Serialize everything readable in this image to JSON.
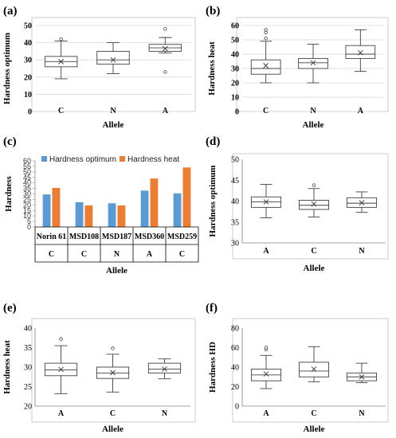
{
  "panels": {
    "a": {
      "label": "(a)"
    },
    "b": {
      "label": "(b)"
    },
    "c": {
      "label": "(c)"
    },
    "d": {
      "label": "(d)"
    },
    "e": {
      "label": "(e)"
    },
    "f": {
      "label": "(f)"
    }
  },
  "chart_data": [
    {
      "id": "a",
      "type": "box",
      "title": "",
      "xlabel": "Allele",
      "ylabel": "Hardness optimum",
      "ylim": [
        0,
        50
      ],
      "yticks": [
        0,
        10,
        20,
        30,
        40,
        50
      ],
      "grid": true,
      "categories": [
        "C",
        "N",
        "A"
      ],
      "boxes": [
        {
          "min": 19,
          "q1": 26,
          "median": 29,
          "q3": 32,
          "max": 41,
          "mean": 29,
          "outliers": [
            42
          ]
        },
        {
          "min": 22,
          "q1": 27.5,
          "median": 30,
          "q3": 35,
          "max": 40,
          "mean": 30,
          "outliers": []
        },
        {
          "min": 34,
          "q1": 35,
          "median": 37,
          "q3": 39,
          "max": 43,
          "mean": 36.5,
          "outliers": [
            48,
            23
          ]
        }
      ]
    },
    {
      "id": "b",
      "type": "box",
      "title": "",
      "xlabel": "Allele",
      "ylabel": "Hardness heat",
      "ylim": [
        0,
        60
      ],
      "yticks": [
        0,
        10,
        20,
        30,
        40,
        50,
        60
      ],
      "grid": true,
      "categories": [
        "C",
        "N",
        "A"
      ],
      "boxes": [
        {
          "min": 20,
          "q1": 26,
          "median": 30,
          "q3": 36,
          "max": 49,
          "mean": 32,
          "outliers": [
            51,
            55,
            57
          ]
        },
        {
          "min": 20,
          "q1": 30,
          "median": 34,
          "q3": 37,
          "max": 47,
          "mean": 34,
          "outliers": []
        },
        {
          "min": 28,
          "q1": 37,
          "median": 40,
          "q3": 46,
          "max": 57,
          "mean": 41,
          "outliers": []
        }
      ]
    },
    {
      "id": "c",
      "type": "bar",
      "title": "",
      "xlabel": "Allele",
      "ylabel": "Hardness",
      "ylim": [
        0,
        60
      ],
      "yticks": [
        0,
        5,
        10,
        15,
        20,
        25,
        30,
        35,
        40,
        45,
        50,
        55,
        60
      ],
      "grid": false,
      "legend": "top",
      "categories": [
        "Norin 61",
        "MSD108",
        "MSD187",
        "MSD360",
        "MSD259"
      ],
      "alleles": [
        "C",
        "C",
        "N",
        "A",
        "C"
      ],
      "series": [
        {
          "name": "Hardness optimum",
          "color": "#5B9BD5",
          "values": [
            29.5,
            22.5,
            21.5,
            33,
            30.5
          ]
        },
        {
          "name": "Hardness heat",
          "color": "#ED7D31",
          "values": [
            35.5,
            19.5,
            19.5,
            44,
            54
          ]
        }
      ]
    },
    {
      "id": "d",
      "type": "box",
      "title": "",
      "xlabel": "Allele",
      "ylabel": "Hardness optimum",
      "ylim": [
        30,
        50
      ],
      "yticks": [
        30,
        35,
        40,
        45,
        50
      ],
      "grid": false,
      "categories": [
        "A",
        "C",
        "N"
      ],
      "boxes": [
        {
          "min": 36,
          "q1": 38.5,
          "median": 39.8,
          "q3": 41,
          "max": 44,
          "mean": 39.8,
          "outliers": []
        },
        {
          "min": 36.2,
          "q1": 38,
          "median": 39,
          "q3": 40.2,
          "max": 43,
          "mean": 39.3,
          "outliers": [
            43.8
          ]
        },
        {
          "min": 37.3,
          "q1": 38.5,
          "median": 39.5,
          "q3": 40.8,
          "max": 42.2,
          "mean": 39.6,
          "outliers": []
        }
      ]
    },
    {
      "id": "e",
      "type": "box",
      "title": "",
      "xlabel": "Allele",
      "ylabel": "Hardness heat",
      "ylim": [
        20,
        40
      ],
      "yticks": [
        20,
        25,
        30,
        35,
        40
      ],
      "grid": false,
      "categories": [
        "A",
        "C",
        "N"
      ],
      "boxes": [
        {
          "min": 23.2,
          "q1": 27.8,
          "median": 29.3,
          "q3": 31,
          "max": 35.5,
          "mean": 29.4,
          "outliers": [
            37.2
          ]
        },
        {
          "min": 23.6,
          "q1": 27.1,
          "median": 28.5,
          "q3": 30,
          "max": 33.3,
          "mean": 28.6,
          "outliers": [
            34.8
          ]
        },
        {
          "min": 27,
          "q1": 28.5,
          "median": 29.5,
          "q3": 31,
          "max": 32.1,
          "mean": 29.5,
          "outliers": []
        }
      ]
    },
    {
      "id": "f",
      "type": "box",
      "title": "",
      "xlabel": "Allele",
      "ylabel": "Hardness HD",
      "ylim": [
        0,
        80
      ],
      "yticks": [
        0,
        20,
        40,
        60,
        80
      ],
      "grid": false,
      "categories": [
        "A",
        "C",
        "N"
      ],
      "boxes": [
        {
          "min": 18,
          "q1": 26,
          "median": 32,
          "q3": 38,
          "max": 52,
          "mean": 33,
          "outliers": [
            58,
            60
          ]
        },
        {
          "min": 25,
          "q1": 30,
          "median": 36,
          "q3": 45,
          "max": 61,
          "mean": 38,
          "outliers": []
        },
        {
          "min": 24,
          "q1": 26,
          "median": 30,
          "q3": 34,
          "max": 44,
          "mean": 30,
          "outliers": []
        }
      ]
    }
  ]
}
